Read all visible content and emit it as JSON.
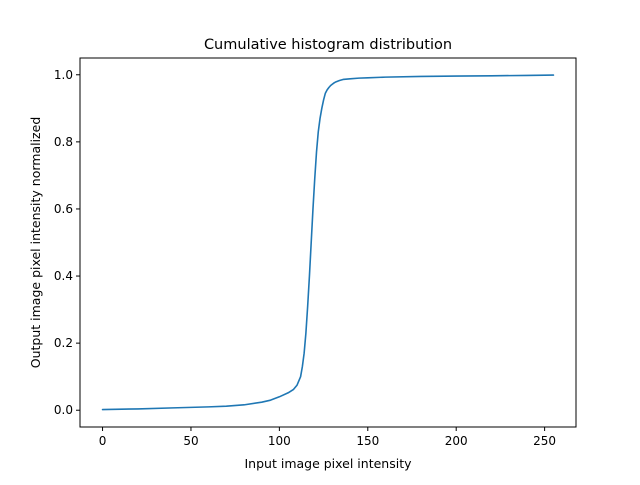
{
  "chart_data": {
    "type": "line",
    "title": "Cumulative histogram distribution",
    "xlabel": "Input image pixel intensity",
    "ylabel": "Output image pixel intensity normalized",
    "xlim": [
      -12.75,
      267.75
    ],
    "ylim": [
      -0.05,
      1.05
    ],
    "xticks": [
      0,
      50,
      100,
      150,
      200,
      250
    ],
    "yticks": [
      0.0,
      0.2,
      0.4,
      0.6,
      0.8,
      1.0
    ],
    "xtick_labels": [
      "0",
      "50",
      "100",
      "150",
      "200",
      "250"
    ],
    "ytick_labels": [
      "0.0",
      "0.2",
      "0.4",
      "0.6",
      "0.8",
      "1.0"
    ],
    "grid": false,
    "series": [
      {
        "color": "#1f77b4",
        "x": [
          0,
          20,
          40,
          60,
          70,
          80,
          90,
          95,
          100,
          105,
          108,
          110,
          112,
          113,
          114,
          115,
          116,
          117,
          118,
          119,
          120,
          121,
          122,
          123,
          124,
          125,
          126,
          127,
          128,
          129,
          130,
          131,
          132,
          134,
          136,
          140,
          145,
          150,
          160,
          180,
          200,
          220,
          240,
          255
        ],
        "y": [
          0.002,
          0.004,
          0.007,
          0.01,
          0.012,
          0.016,
          0.024,
          0.03,
          0.04,
          0.052,
          0.062,
          0.075,
          0.1,
          0.13,
          0.17,
          0.23,
          0.31,
          0.4,
          0.5,
          0.6,
          0.69,
          0.77,
          0.83,
          0.87,
          0.9,
          0.925,
          0.945,
          0.955,
          0.962,
          0.968,
          0.972,
          0.976,
          0.979,
          0.983,
          0.986,
          0.988,
          0.99,
          0.991,
          0.993,
          0.995,
          0.996,
          0.997,
          0.998,
          0.999
        ]
      }
    ]
  }
}
